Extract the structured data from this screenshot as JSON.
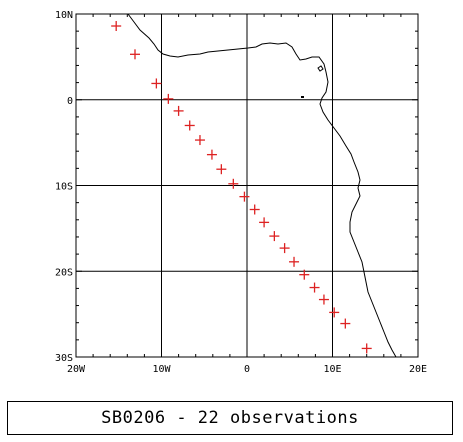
{
  "map": {
    "lon_range": [
      -20,
      20
    ],
    "lat_range": [
      -30,
      10
    ],
    "lon_ticks": [
      {
        "value": -20,
        "label": "20W"
      },
      {
        "value": -10,
        "label": "10W"
      },
      {
        "value": 0,
        "label": "0"
      },
      {
        "value": 10,
        "label": "10E"
      },
      {
        "value": 20,
        "label": "20E"
      }
    ],
    "lat_ticks": [
      {
        "value": 10,
        "label": "10N"
      },
      {
        "value": 0,
        "label": "0"
      },
      {
        "value": -10,
        "label": "10S"
      },
      {
        "value": -20,
        "label": "20S"
      },
      {
        "value": -30,
        "label": "30S"
      }
    ],
    "grid": true,
    "coastline_color": "#000000",
    "marker": {
      "symbol": "plus",
      "color": "#dd2222"
    },
    "observations": [
      {
        "lon": -15.3,
        "lat": 8.6
      },
      {
        "lon": -13.1,
        "lat": 5.3
      },
      {
        "lon": -10.6,
        "lat": 1.9
      },
      {
        "lon": -9.2,
        "lat": 0.1
      },
      {
        "lon": -8.0,
        "lat": -1.3
      },
      {
        "lon": -6.7,
        "lat": -3.0
      },
      {
        "lon": -5.5,
        "lat": -4.7
      },
      {
        "lon": -4.1,
        "lat": -6.4
      },
      {
        "lon": -3.0,
        "lat": -8.1
      },
      {
        "lon": -1.6,
        "lat": -9.8
      },
      {
        "lon": -0.3,
        "lat": -11.3
      },
      {
        "lon": 0.9,
        "lat": -12.8
      },
      {
        "lon": 2.0,
        "lat": -14.3
      },
      {
        "lon": 3.2,
        "lat": -15.9
      },
      {
        "lon": 4.4,
        "lat": -17.3
      },
      {
        "lon": 5.5,
        "lat": -18.9
      },
      {
        "lon": 6.7,
        "lat": -20.4
      },
      {
        "lon": 7.9,
        "lat": -21.9
      },
      {
        "lon": 9.0,
        "lat": -23.3
      },
      {
        "lon": 10.2,
        "lat": -24.8
      },
      {
        "lon": 11.5,
        "lat": -26.1
      },
      {
        "lon": 14.0,
        "lat": -29.0
      }
    ]
  },
  "caption": "SB0206 - 22 observations"
}
